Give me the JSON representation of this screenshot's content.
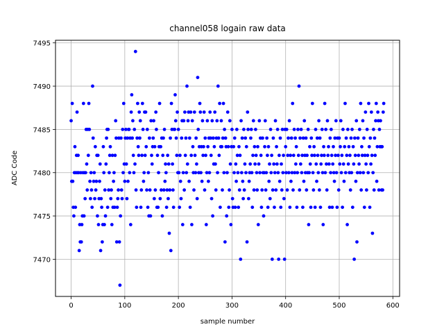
{
  "chart_data": {
    "type": "scatter",
    "title": "channel058 logain raw data",
    "x_label": "sample number",
    "y_label": "ADC Code",
    "color": "#0000ff",
    "grid": true,
    "xlim": [
      -29.2,
      612.6
    ],
    "ylim": [
      7465.7,
      7495.3
    ],
    "xticks": [
      0,
      100,
      200,
      300,
      400,
      500,
      600
    ],
    "yticks": [
      7470,
      7475,
      7480,
      7485,
      7490,
      7495
    ],
    "x": [
      0,
      1,
      2,
      3,
      4,
      5,
      6,
      7,
      8,
      9,
      10,
      11,
      12,
      13,
      14,
      15,
      16,
      17,
      18,
      19,
      20,
      21,
      22,
      23,
      24,
      25,
      26,
      27,
      28,
      29,
      30,
      31,
      32,
      33,
      34,
      35,
      36,
      37,
      38,
      39,
      40,
      41,
      42,
      43,
      44,
      45,
      46,
      47,
      48,
      49,
      50,
      51,
      52,
      53,
      54,
      55,
      56,
      57,
      58,
      59,
      60,
      61,
      62,
      63,
      64,
      65,
      66,
      67,
      68,
      69,
      70,
      71,
      72,
      73,
      74,
      75,
      76,
      77,
      78,
      79,
      80,
      81,
      82,
      83,
      84,
      85,
      86,
      87,
      88,
      89,
      90,
      91,
      92,
      93,
      94,
      95,
      96,
      97,
      98,
      99,
      100,
      101,
      102,
      103,
      104,
      105,
      106,
      107,
      108,
      109,
      110,
      111,
      112,
      113,
      114,
      115,
      116,
      117,
      118,
      119,
      120,
      121,
      122,
      123,
      124,
      125,
      126,
      127,
      128,
      129,
      130,
      131,
      132,
      133,
      134,
      135,
      136,
      137,
      138,
      139,
      140,
      141,
      142,
      143,
      144,
      145,
      146,
      147,
      148,
      149,
      150,
      151,
      152,
      153,
      154,
      155,
      156,
      157,
      158,
      159,
      160,
      161,
      162,
      163,
      164,
      165,
      166,
      167,
      168,
      169,
      170,
      171,
      172,
      173,
      174,
      175,
      176,
      177,
      178,
      179,
      180,
      181,
      182,
      183,
      184,
      185,
      186,
      187,
      188,
      189,
      190,
      191,
      192,
      193,
      194,
      195,
      196,
      197,
      198,
      199,
      200,
      201,
      202,
      203,
      204,
      205,
      206,
      207,
      208,
      209,
      210,
      211,
      212,
      213,
      214,
      215,
      216,
      217,
      218,
      219,
      220,
      221,
      222,
      223,
      224,
      225,
      226,
      227,
      228,
      229,
      230,
      231,
      232,
      233,
      234,
      235,
      236,
      237,
      238,
      239,
      240,
      241,
      242,
      243,
      244,
      245,
      246,
      247,
      248,
      249,
      250,
      251,
      252,
      253,
      254,
      255,
      256,
      257,
      258,
      259,
      260,
      261,
      262,
      263,
      264,
      265,
      266,
      267,
      268,
      269,
      270,
      271,
      272,
      273,
      274,
      275,
      276,
      277,
      278,
      279,
      280,
      281,
      282,
      283,
      284,
      285,
      286,
      287,
      288,
      289,
      290,
      291,
      292,
      293,
      294,
      295,
      296,
      297,
      298,
      299,
      300,
      301,
      302,
      303,
      304,
      305,
      306,
      307,
      308,
      309,
      310,
      311,
      312,
      313,
      314,
      315,
      316,
      317,
      318,
      319,
      320,
      321,
      322,
      323,
      324,
      325,
      326,
      327,
      328,
      329,
      330,
      331,
      332,
      333,
      334,
      335,
      336,
      337,
      338,
      339,
      340,
      341,
      342,
      343,
      344,
      345,
      346,
      347,
      348,
      349,
      350,
      351,
      352,
      353,
      354,
      355,
      356,
      357,
      358,
      359,
      360,
      361,
      362,
      363,
      364,
      365,
      366,
      367,
      368,
      369,
      370,
      371,
      372,
      373,
      374,
      375,
      376,
      377,
      378,
      379,
      380,
      381,
      382,
      383,
      384,
      385,
      386,
      387,
      388,
      389,
      390,
      391,
      392,
      393,
      394,
      395,
      396,
      397,
      398,
      399,
      400,
      401,
      402,
      403,
      404,
      405,
      406,
      407,
      408,
      409,
      410,
      411,
      412,
      413,
      414,
      415,
      416,
      417,
      418,
      419,
      420,
      421,
      422,
      423,
      424,
      425,
      426,
      427,
      428,
      429,
      430,
      431,
      432,
      433,
      434,
      435,
      436,
      437,
      438,
      439,
      440,
      441,
      442,
      443,
      444,
      445,
      446,
      447,
      448,
      449,
      450,
      451,
      452,
      453,
      454,
      455,
      456,
      457,
      458,
      459,
      460,
      461,
      462,
      463,
      464,
      465,
      466,
      467,
      468,
      469,
      470,
      471,
      472,
      473,
      474,
      475,
      476,
      477,
      478,
      479,
      480,
      481,
      482,
      483,
      484,
      485,
      486,
      487,
      488,
      489,
      490,
      491,
      492,
      493,
      494,
      495,
      496,
      497,
      498,
      499,
      500,
      501,
      502,
      503,
      504,
      505,
      506,
      507,
      508,
      509,
      510,
      511,
      512,
      513,
      514,
      515,
      516,
      517,
      518,
      519,
      520,
      521,
      522,
      523,
      524,
      525,
      526,
      527,
      528,
      529,
      530,
      531,
      532,
      533,
      534,
      535,
      536,
      537,
      538,
      539,
      540,
      541,
      542,
      543,
      544,
      545,
      546,
      547,
      548,
      549,
      550,
      551,
      552,
      553,
      554,
      555,
      556,
      557,
      558,
      559,
      560,
      561,
      562,
      563,
      564,
      565,
      566,
      567,
      568,
      569,
      570,
      571,
      572,
      573,
      574,
      575,
      576,
      577,
      578,
      579,
      580,
      581,
      582,
      583
    ],
    "values": [
      7486,
      7479,
      7488,
      7479,
      7476,
      7475,
      7480,
      7483,
      7476,
      7480,
      7482,
      7487,
      7480,
      7482,
      7480,
      7471,
      7474,
      7472,
      7480,
      7472,
      7474,
      7475,
      7480,
      7488,
      7475,
      7480,
      7477,
      7480,
      7485,
      7481,
      7478,
      7485,
      7482,
      7488,
      7485,
      7479,
      7477,
      7480,
      7478,
      7476,
      7490,
      7484,
      7479,
      7480,
      7477,
      7483,
      7478,
      7479,
      7482,
      7475,
      7482,
      7474,
      7477,
      7479,
      7481,
      7471,
      7477,
      7476,
      7472,
      7474,
      7483,
      7480,
      7474,
      7478,
      7475,
      7481,
      7484,
      7485,
      7476,
      7485,
      7478,
      7480,
      7482,
      7483,
      7477,
      7478,
      7474,
      7482,
      7476,
      7479,
      7480,
      7476,
      7482,
      7486,
      7484,
      7472,
      7476,
      7477,
      7478,
      7484,
      7472,
      7467,
      7475,
      7484,
      7478,
      7477,
      7485,
      7480,
      7488,
      7481,
      7479,
      7484,
      7485,
      7481,
      7477,
      7484,
      7479,
      7485,
      7485,
      7480,
      7484,
      7474,
      7487,
      7489,
      7484,
      7486,
      7482,
      7480,
      7485,
      7481,
      7494,
      7478,
      7476,
      7484,
      7488,
      7483,
      7482,
      7487,
      7484,
      7486,
      7476,
      7478,
      7482,
      7488,
      7485,
      7479,
      7480,
      7487,
      7482,
      7487,
      7483,
      7478,
      7485,
      7476,
      7480,
      7475,
      7484,
      7478,
      7475,
      7486,
      7482,
      7481,
      7483,
      7484,
      7486,
      7477,
      7483,
      7478,
      7487,
      7485,
      7476,
      7482,
      7476,
      7480,
      7483,
      7488,
      7477,
      7483,
      7478,
      7484,
      7475,
      7482,
      7484,
      7478,
      7485,
      7479,
      7481,
      7480,
      7476,
      7478,
      7482,
      7477,
      7481,
      7473,
      7478,
      7484,
      7471,
      7488,
      7485,
      7481,
      7478,
      7476,
      7485,
      7485,
      7489,
      7486,
      7484,
      7482,
      7487,
      7480,
      7485,
      7480,
      7476,
      7482,
      7479,
      7477,
      7484,
      7486,
      7474,
      7480,
      7486,
      7478,
      7487,
      7482,
      7484,
      7480,
      7490,
      7481,
      7486,
      7487,
      7479,
      7484,
      7476,
      7487,
      7482,
      7474,
      7486,
      7483,
      7480,
      7478,
      7487,
      7482,
      7480,
      7484,
      7481,
      7477,
      7491,
      7485,
      7480,
      7483,
      7488,
      7487,
      7480,
      7483,
      7479,
      7486,
      7482,
      7483,
      7487,
      7478,
      7484,
      7482,
      7474,
      7480,
      7486,
      7483,
      7479,
      7484,
      7480,
      7487,
      7484,
      7482,
      7477,
      7486,
      7475,
      7484,
      7481,
      7483,
      7487,
      7481,
      7478,
      7484,
      7486,
      7480,
      7490,
      7484,
      7482,
      7488,
      7476,
      7483,
      7486,
      7483,
      7478,
      7484,
      7488,
      7480,
      7485,
      7472,
      7484,
      7483,
      7475,
      7480,
      7487,
      7483,
      7476,
      7478,
      7486,
      7481,
      7474,
      7483,
      7485,
      7477,
      7476,
      7483,
      7480,
      7484,
      7476,
      7481,
      7479,
      7485,
      7482,
      7480,
      7476,
      7483,
      7478,
      7482,
      7470,
      7486,
      7480,
      7484,
      7479,
      7477,
      7485,
      7478,
      7481,
      7484,
      7480,
      7483,
      7472,
      7487,
      7485,
      7477,
      7479,
      7480,
      7481,
      7484,
      7485,
      7480,
      7476,
      7482,
      7486,
      7478,
      7483,
      7481,
      7485,
      7482,
      7480,
      7478,
      7483,
      7474,
      7481,
      7486,
      7480,
      7484,
      7482,
      7476,
      7478,
      7484,
      7480,
      7475,
      7480,
      7483,
      7486,
      7478,
      7480,
      7484,
      7482,
      7476,
      7483,
      7479,
      7481,
      7477,
      7485,
      7480,
      7482,
      7470,
      7478,
      7484,
      7481,
      7476,
      7480,
      7486,
      7478,
      7483,
      7481,
      7485,
      7480,
      7470,
      7482,
      7479,
      7484,
      7476,
      7481,
      7478,
      7485,
      7480,
      7482,
      7477,
      7470,
      7485,
      7483,
      7480,
      7485,
      7478,
      7482,
      7484,
      7480,
      7486,
      7476,
      7482,
      7479,
      7484,
      7480,
      7488,
      7478,
      7482,
      7485,
      7480,
      7484,
      7481,
      7483,
      7476,
      7480,
      7485,
      7482,
      7490,
      7478,
      7484,
      7481,
      7485,
      7480,
      7482,
      7476,
      7484,
      7479,
      7486,
      7482,
      7480,
      7484,
      7478,
      7482,
      7480,
      7485,
      7474,
      7480,
      7483,
      7481,
      7476,
      7484,
      7482,
      7488,
      7480,
      7478,
      7483,
      7482,
      7476,
      7485,
      7481,
      7479,
      7484,
      7482,
      7480,
      7486,
      7478,
      7484,
      7476,
      7481,
      7482,
      7485,
      7480,
      7474,
      7483,
      7482,
      7488,
      7480,
      7485,
      7481,
      7478,
      7486,
      7482,
      7483,
      7481,
      7476,
      7484,
      7480,
      7485,
      7482,
      7476,
      7481,
      7483,
      7480,
      7479,
      7484,
      7482,
      7486,
      7480,
      7476,
      7484,
      7482,
      7478,
      7484,
      7481,
      7483,
      7486,
      7480,
      7482,
      7476,
      7485,
      7481,
      7479,
      7483,
      7488,
      7480,
      7484,
      7482,
      7474,
      7485,
      7481,
      7483,
      7480,
      7482,
      7478,
      7484,
      7480,
      7485,
      7476,
      7483,
      7481,
      7470,
      7484,
      7482,
      7479,
      7486,
      7472,
      7480,
      7484,
      7482,
      7481,
      7485,
      7480,
      7488,
      7478,
      7483,
      7482,
      7486,
      7480,
      7484,
      7476,
      7482,
      7487,
      7481,
      7478,
      7485,
      7482,
      7480,
      7488,
      7483,
      7476,
      7484,
      7481,
      7487,
      7482,
      7473,
      7480,
      7485,
      7478,
      7484,
      7482,
      7486,
      7488,
      7479,
      7483,
      7487,
      7486,
      7478,
      7485,
      7483,
      7486,
      7483,
      7478,
      7483,
      7478,
      7487,
      7488
    ]
  }
}
